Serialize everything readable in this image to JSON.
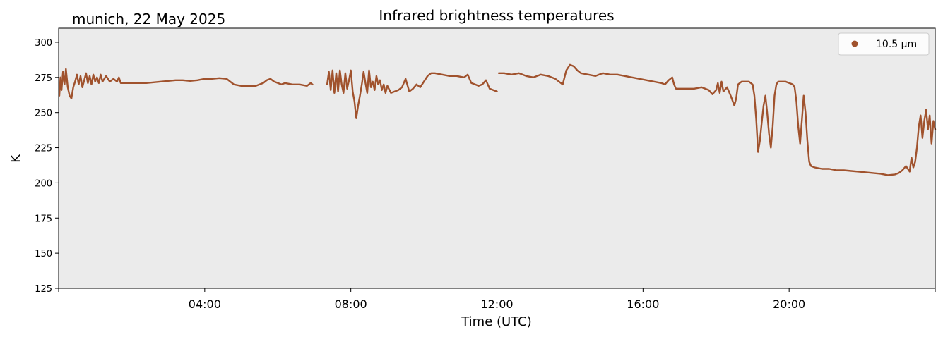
{
  "chart_data": {
    "type": "line",
    "title": "Infrared brightness temperatures",
    "subtitle": "munich, 22 May 2025",
    "xlabel": "Time (UTC)",
    "ylabel": "K",
    "x_unit": "hours UTC",
    "xlim": [
      0,
      24
    ],
    "ylim": [
      125,
      310
    ],
    "x_ticks": [
      {
        "value": 0,
        "label": ""
      },
      {
        "value": 4,
        "label": "04:00"
      },
      {
        "value": 8,
        "label": "08:00"
      },
      {
        "value": 12,
        "label": "12:00"
      },
      {
        "value": 16,
        "label": "16:00"
      },
      {
        "value": 20,
        "label": "20:00"
      },
      {
        "value": 24,
        "label": ""
      }
    ],
    "y_ticks": [
      125,
      150,
      175,
      200,
      225,
      250,
      275,
      300
    ],
    "grid": false,
    "background": "#ebebeb",
    "legend_position": "top-right",
    "series": [
      {
        "name": "10.5 µm",
        "color": "#a0522d",
        "segments": [
          [
            [
              0.02,
              262
            ],
            [
              0.05,
              275
            ],
            [
              0.08,
              266
            ],
            [
              0.12,
              279
            ],
            [
              0.16,
              270
            ],
            [
              0.2,
              281
            ],
            [
              0.25,
              268
            ],
            [
              0.3,
              262
            ],
            [
              0.35,
              260
            ],
            [
              0.4,
              268
            ],
            [
              0.45,
              272
            ],
            [
              0.5,
              277
            ],
            [
              0.55,
              270
            ],
            [
              0.6,
              276
            ],
            [
              0.65,
              268
            ],
            [
              0.7,
              273
            ],
            [
              0.75,
              278
            ],
            [
              0.8,
              271
            ],
            [
              0.85,
              276
            ],
            [
              0.9,
              270
            ],
            [
              0.95,
              277
            ],
            [
              1.0,
              272
            ],
            [
              1.05,
              275
            ],
            [
              1.1,
              271
            ],
            [
              1.15,
              277
            ],
            [
              1.2,
              272
            ],
            [
              1.3,
              276
            ],
            [
              1.4,
              272
            ],
            [
              1.5,
              274
            ],
            [
              1.6,
              272
            ],
            [
              1.65,
              275
            ],
            [
              1.7,
              271
            ],
            [
              1.8,
              271
            ],
            [
              2.0,
              271
            ],
            [
              2.2,
              271
            ],
            [
              2.4,
              271
            ],
            [
              2.6,
              271.5
            ],
            [
              2.8,
              272
            ],
            [
              3.0,
              272.5
            ],
            [
              3.2,
              273
            ],
            [
              3.4,
              273
            ],
            [
              3.6,
              272.5
            ],
            [
              3.8,
              273
            ],
            [
              4.0,
              274
            ],
            [
              4.2,
              274
            ],
            [
              4.4,
              274.5
            ],
            [
              4.6,
              274
            ],
            [
              4.7,
              272
            ],
            [
              4.8,
              270
            ],
            [
              5.0,
              269
            ],
            [
              5.2,
              269
            ],
            [
              5.4,
              269
            ],
            [
              5.5,
              270
            ],
            [
              5.6,
              271
            ],
            [
              5.7,
              273
            ],
            [
              5.8,
              274
            ],
            [
              5.9,
              272
            ],
            [
              6.0,
              271
            ],
            [
              6.1,
              270
            ],
            [
              6.2,
              271
            ],
            [
              6.4,
              270
            ],
            [
              6.6,
              270
            ],
            [
              6.8,
              269
            ],
            [
              6.9,
              271
            ],
            [
              6.95,
              270
            ]
          ],
          [
            [
              7.35,
              270
            ],
            [
              7.4,
              279
            ],
            [
              7.45,
              266
            ],
            [
              7.5,
              280
            ],
            [
              7.55,
              264
            ],
            [
              7.6,
              278
            ],
            [
              7.65,
              265
            ],
            [
              7.7,
              280
            ],
            [
              7.75,
              270
            ],
            [
              7.8,
              264
            ],
            [
              7.85,
              278
            ],
            [
              7.9,
              267
            ],
            [
              7.95,
              273
            ],
            [
              8.0,
              280
            ],
            [
              8.05,
              265
            ],
            [
              8.1,
              258
            ],
            [
              8.15,
              246
            ],
            [
              8.2,
              255
            ],
            [
              8.25,
              262
            ],
            [
              8.3,
              270
            ],
            [
              8.35,
              279
            ],
            [
              8.4,
              271
            ],
            [
              8.45,
              264
            ],
            [
              8.5,
              280
            ],
            [
              8.55,
              268
            ],
            [
              8.6,
              272
            ],
            [
              8.65,
              266
            ],
            [
              8.7,
              276
            ],
            [
              8.75,
              270
            ],
            [
              8.8,
              273
            ],
            [
              8.85,
              266
            ],
            [
              8.9,
              270
            ],
            [
              8.95,
              264
            ],
            [
              9.0,
              269
            ],
            [
              9.1,
              264
            ],
            [
              9.2,
              265
            ],
            [
              9.3,
              266
            ],
            [
              9.4,
              268
            ],
            [
              9.5,
              274
            ],
            [
              9.6,
              265
            ],
            [
              9.7,
              267
            ],
            [
              9.8,
              270
            ],
            [
              9.9,
              268
            ],
            [
              10.0,
              272
            ],
            [
              10.1,
              276
            ],
            [
              10.2,
              278
            ],
            [
              10.3,
              278
            ],
            [
              10.5,
              277
            ],
            [
              10.7,
              276
            ],
            [
              10.9,
              276
            ],
            [
              11.1,
              275
            ],
            [
              11.2,
              277
            ],
            [
              11.3,
              271
            ],
            [
              11.4,
              270
            ],
            [
              11.5,
              269
            ],
            [
              11.6,
              270
            ],
            [
              11.7,
              273
            ],
            [
              11.8,
              267
            ],
            [
              11.9,
              266
            ],
            [
              12.0,
              265
            ]
          ],
          [
            [
              12.05,
              278
            ],
            [
              12.2,
              278
            ],
            [
              12.4,
              277
            ],
            [
              12.6,
              278
            ],
            [
              12.8,
              276
            ],
            [
              13.0,
              275
            ],
            [
              13.2,
              277
            ],
            [
              13.4,
              276
            ],
            [
              13.6,
              274
            ],
            [
              13.7,
              272
            ],
            [
              13.8,
              270
            ],
            [
              13.9,
              280
            ],
            [
              14.0,
              284
            ],
            [
              14.1,
              283
            ],
            [
              14.2,
              280
            ],
            [
              14.3,
              278
            ],
            [
              14.5,
              277
            ],
            [
              14.7,
              276
            ],
            [
              14.9,
              278
            ],
            [
              15.1,
              277
            ],
            [
              15.3,
              277
            ],
            [
              15.5,
              276
            ],
            [
              15.7,
              275
            ],
            [
              15.9,
              274
            ],
            [
              16.1,
              273
            ],
            [
              16.3,
              272
            ],
            [
              16.5,
              271
            ],
            [
              16.6,
              270
            ],
            [
              16.7,
              273
            ],
            [
              16.8,
              275
            ],
            [
              16.85,
              270
            ],
            [
              16.9,
              267
            ],
            [
              17.0,
              267
            ],
            [
              17.2,
              267
            ],
            [
              17.4,
              267
            ],
            [
              17.6,
              268
            ],
            [
              17.7,
              267
            ],
            [
              17.8,
              266
            ],
            [
              17.9,
              263
            ],
            [
              18.0,
              266
            ],
            [
              18.05,
              271
            ],
            [
              18.1,
              264
            ],
            [
              18.15,
              272
            ],
            [
              18.2,
              265
            ],
            [
              18.3,
              268
            ],
            [
              18.4,
              262
            ],
            [
              18.5,
              255
            ],
            [
              18.55,
              260
            ],
            [
              18.6,
              270
            ],
            [
              18.7,
              272
            ],
            [
              18.8,
              272
            ],
            [
              18.9,
              272
            ],
            [
              19.0,
              270
            ],
            [
              19.05,
              262
            ],
            [
              19.1,
              245
            ],
            [
              19.15,
              222
            ],
            [
              19.2,
              230
            ],
            [
              19.25,
              243
            ],
            [
              19.3,
              255
            ],
            [
              19.35,
              262
            ],
            [
              19.4,
              250
            ],
            [
              19.45,
              235
            ],
            [
              19.5,
              225
            ],
            [
              19.55,
              240
            ],
            [
              19.6,
              262
            ],
            [
              19.65,
              270
            ],
            [
              19.7,
              272
            ],
            [
              19.8,
              272
            ],
            [
              19.9,
              272
            ],
            [
              20.0,
              271
            ],
            [
              20.1,
              270
            ],
            [
              20.15,
              268
            ],
            [
              20.2,
              258
            ],
            [
              20.25,
              240
            ],
            [
              20.3,
              228
            ],
            [
              20.35,
              245
            ],
            [
              20.4,
              262
            ],
            [
              20.45,
              250
            ],
            [
              20.5,
              230
            ],
            [
              20.55,
              215
            ],
            [
              20.6,
              212
            ],
            [
              20.7,
              211
            ],
            [
              20.9,
              210
            ],
            [
              21.1,
              210
            ],
            [
              21.3,
              209
            ],
            [
              21.5,
              209
            ],
            [
              21.7,
              208.5
            ],
            [
              21.9,
              208
            ],
            [
              22.1,
              207.5
            ],
            [
              22.3,
              207
            ],
            [
              22.5,
              206.5
            ],
            [
              22.7,
              205.5
            ],
            [
              22.9,
              206
            ],
            [
              23.0,
              207
            ],
            [
              23.1,
              209
            ],
            [
              23.2,
              212
            ],
            [
              23.3,
              208
            ],
            [
              23.35,
              218
            ],
            [
              23.4,
              211
            ],
            [
              23.45,
              215
            ],
            [
              23.5,
              225
            ],
            [
              23.55,
              240
            ],
            [
              23.6,
              248
            ],
            [
              23.65,
              232
            ],
            [
              23.7,
              244
            ],
            [
              23.75,
              252
            ],
            [
              23.8,
              238
            ],
            [
              23.85,
              248
            ],
            [
              23.9,
              228
            ],
            [
              23.95,
              244
            ],
            [
              24.0,
              238
            ]
          ]
        ]
      }
    ]
  }
}
